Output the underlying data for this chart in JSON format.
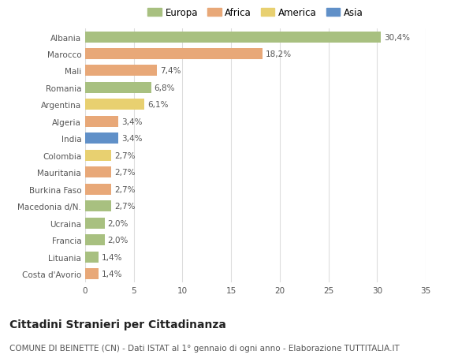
{
  "countries": [
    "Albania",
    "Marocco",
    "Mali",
    "Romania",
    "Argentina",
    "Algeria",
    "India",
    "Colombia",
    "Mauritania",
    "Burkina Faso",
    "Macedonia d/N.",
    "Ucraina",
    "Francia",
    "Lituania",
    "Costa d'Avorio"
  ],
  "values": [
    30.4,
    18.2,
    7.4,
    6.8,
    6.1,
    3.4,
    3.4,
    2.7,
    2.7,
    2.7,
    2.7,
    2.0,
    2.0,
    1.4,
    1.4
  ],
  "labels": [
    "30,4%",
    "18,2%",
    "7,4%",
    "6,8%",
    "6,1%",
    "3,4%",
    "3,4%",
    "2,7%",
    "2,7%",
    "2,7%",
    "2,7%",
    "2,0%",
    "2,0%",
    "1,4%",
    "1,4%"
  ],
  "continents": [
    "Europa",
    "Africa",
    "Africa",
    "Europa",
    "America",
    "Africa",
    "Asia",
    "America",
    "Africa",
    "Africa",
    "Europa",
    "Europa",
    "Europa",
    "Europa",
    "Africa"
  ],
  "continent_colors": {
    "Europa": "#a8c080",
    "Africa": "#e8a878",
    "America": "#e8d070",
    "Asia": "#6090c8"
  },
  "legend_order": [
    "Europa",
    "Africa",
    "America",
    "Asia"
  ],
  "title": "Cittadini Stranieri per Cittadinanza",
  "subtitle": "COMUNE DI BEINETTE (CN) - Dati ISTAT al 1° gennaio di ogni anno - Elaborazione TUTTITALIA.IT",
  "xlim": [
    0,
    35
  ],
  "xticks": [
    0,
    5,
    10,
    15,
    20,
    25,
    30,
    35
  ],
  "background_color": "#ffffff",
  "grid_color": "#dddddd",
  "bar_height": 0.65,
  "label_fontsize": 7.5,
  "tick_fontsize": 7.5,
  "legend_fontsize": 8.5,
  "title_fontsize": 10,
  "subtitle_fontsize": 7.5
}
